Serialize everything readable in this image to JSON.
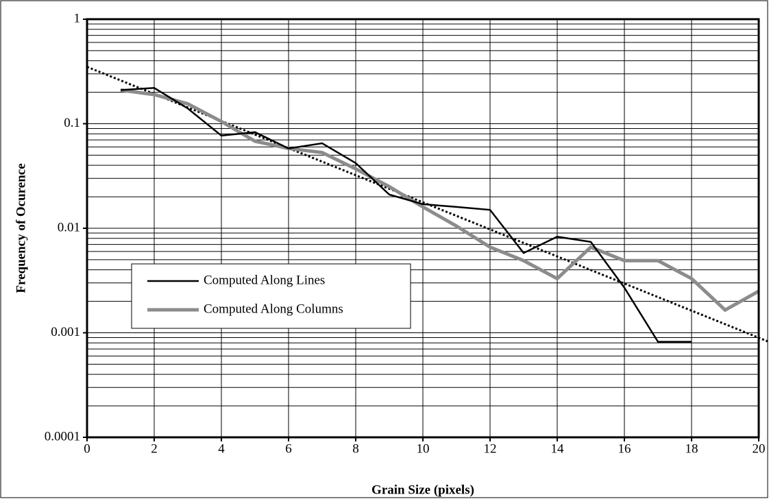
{
  "chart_data": {
    "type": "line",
    "xlabel": "Grain Size (pixels)",
    "ylabel": "Frequency of Ocurence",
    "log_y": true,
    "grid": true,
    "minor_grid": true,
    "xlim": [
      0,
      20
    ],
    "xticks": [
      0,
      2,
      4,
      6,
      8,
      10,
      12,
      14,
      16,
      18,
      20
    ],
    "ylim": [
      0.0001,
      1
    ],
    "yticks": [
      0.0001,
      0.001,
      0.01,
      0.1,
      1
    ],
    "legend": "lower-left",
    "series": [
      {
        "name": "Computed Along Lines",
        "color": "#000000",
        "width": 2.5,
        "x": [
          1,
          2,
          3,
          4,
          5,
          6,
          7,
          8,
          9,
          10,
          11,
          12,
          13,
          14,
          15,
          16,
          17,
          18
        ],
        "values": [
          0.21,
          0.22,
          0.14,
          0.077,
          0.083,
          0.058,
          0.065,
          0.042,
          0.021,
          0.017,
          0.016,
          0.015,
          0.0058,
          0.0083,
          0.0074,
          0.0027,
          0.00082,
          0.00082
        ]
      },
      {
        "name": "Computed Along Columns",
        "color": "#8c8c8c",
        "width": 5,
        "x": [
          1,
          2,
          3,
          4,
          5,
          6,
          7,
          8,
          9,
          10,
          11,
          12,
          13,
          14,
          15,
          16,
          17,
          18,
          19,
          20
        ],
        "values": [
          0.21,
          0.19,
          0.155,
          0.105,
          0.068,
          0.058,
          0.053,
          0.037,
          0.025,
          0.016,
          0.0105,
          0.0066,
          0.0049,
          0.0033,
          0.0066,
          0.0049,
          0.0049,
          0.0033,
          0.00165,
          0.0025
        ]
      }
    ],
    "trendline": {
      "color": "#000000",
      "x": [
        0,
        20.3
      ],
      "values": [
        0.35,
        0.00082
      ]
    }
  }
}
